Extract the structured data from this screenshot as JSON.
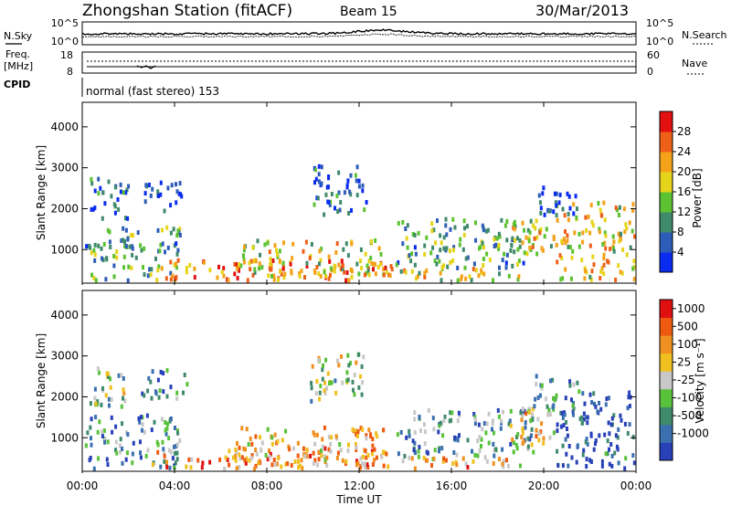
{
  "header": {
    "station": "Zhongshan Station (fitACF)",
    "beam": "Beam 15",
    "date": "30/Mar/2013"
  },
  "noise_panel": {
    "left_label": "N.Sky",
    "left_ticks": [
      "10^5",
      "10^0"
    ],
    "right_label": "N.Search",
    "right_ticks": [
      "10^5",
      "10^0"
    ]
  },
  "freq_panel": {
    "left_label_1": "Freq.",
    "left_label_2": "[MHz]",
    "left_ticks": [
      "18",
      "8"
    ],
    "right_label": "Nave",
    "right_ticks": [
      "60",
      "0"
    ]
  },
  "cpid_panel": {
    "label": "CPID",
    "text": "normal (fast stereo) 153"
  },
  "x_axis": {
    "title": "Time UT",
    "ticks": [
      "00:00",
      "04:00",
      "08:00",
      "12:00",
      "16:00",
      "20:00",
      "00:00"
    ]
  },
  "power_plot": {
    "ylabel": "Slant Range [km]",
    "yticks": [
      "1000",
      "2000",
      "3000",
      "4000"
    ],
    "cbar_label": "Power [dB]",
    "cbar_ticks": [
      "4",
      "8",
      "12",
      "16",
      "20",
      "24",
      "28"
    ],
    "cbar_colors": [
      "#0a2cf0",
      "#2d5db8",
      "#3f8a6a",
      "#5cc232",
      "#e6d41a",
      "#f4a21a",
      "#ee6018",
      "#e21010"
    ]
  },
  "velocity_plot": {
    "ylabel": "Slant Range [km]",
    "yticks": [
      "1000",
      "2000",
      "3000",
      "4000"
    ],
    "cbar_label": "Velocity [m s⁻¹]",
    "cbar_ticks": [
      "1000",
      "500",
      "100",
      "25",
      "-25",
      "-100",
      "-500",
      "-1000"
    ],
    "cbar_colors": [
      "#2840b8",
      "#3a6fb0",
      "#3f8a6a",
      "#58c23a",
      "#c8c8c8",
      "#f0c020",
      "#f09020",
      "#ee5a10",
      "#e01010"
    ]
  },
  "chart_data": [
    {
      "type": "heatmap",
      "title": "Zhongshan Station (fitACF) Beam 15 30/Mar/2013",
      "xlabel": "Time UT",
      "ylabel": "Slant Range [km]",
      "x_ticks": [
        "00:00",
        "04:00",
        "08:00",
        "12:00",
        "16:00",
        "20:00",
        "00:00"
      ],
      "ylim": [
        180,
        4600
      ],
      "colorbar": {
        "label": "Power [dB]",
        "range": [
          0,
          32
        ]
      },
      "blobs": [
        {
          "t0": 0.1,
          "t1": 4.2,
          "r0": 200,
          "r1": 1600,
          "level": 0.35
        },
        {
          "t0": 0.2,
          "t1": 2.0,
          "r0": 1800,
          "r1": 2800,
          "level": 0.15
        },
        {
          "t0": 2.5,
          "t1": 4.5,
          "r0": 2000,
          "r1": 2700,
          "level": 0.12
        },
        {
          "t0": 3.0,
          "t1": 13.5,
          "r0": 180,
          "r1": 800,
          "level": 0.75
        },
        {
          "t0": 6.5,
          "t1": 13.0,
          "r0": 400,
          "r1": 1300,
          "level": 0.55
        },
        {
          "t0": 9.8,
          "t1": 12.3,
          "r0": 1900,
          "r1": 3100,
          "level": 0.18
        },
        {
          "t0": 13.0,
          "t1": 19.0,
          "r0": 250,
          "r1": 600,
          "level": 0.55
        },
        {
          "t0": 13.5,
          "t1": 19.5,
          "r0": 600,
          "r1": 1800,
          "level": 0.35
        },
        {
          "t0": 18.5,
          "t1": 20.5,
          "r0": 800,
          "r1": 1800,
          "level": 0.55
        },
        {
          "t0": 20.5,
          "t1": 24.0,
          "r0": 300,
          "r1": 2200,
          "level": 0.6
        },
        {
          "t0": 19.5,
          "t1": 21.5,
          "r0": 1800,
          "r1": 2600,
          "level": 0.15
        }
      ]
    },
    {
      "type": "heatmap",
      "title": "",
      "xlabel": "Time UT",
      "ylabel": "Slant Range [km]",
      "x_ticks": [
        "00:00",
        "04:00",
        "08:00",
        "12:00",
        "16:00",
        "20:00",
        "00:00"
      ],
      "ylim": [
        180,
        4600
      ],
      "colorbar": {
        "label": "Velocity [m s⁻¹]",
        "range": [
          -1000,
          1000
        ]
      },
      "blobs": [
        {
          "t0": 0.1,
          "t1": 4.2,
          "r0": 200,
          "r1": 1600,
          "level": 0.25
        },
        {
          "t0": 0.2,
          "t1": 2.0,
          "r0": 1800,
          "r1": 2800,
          "level": 0.45
        },
        {
          "t0": 2.5,
          "t1": 4.5,
          "r0": 2000,
          "r1": 2700,
          "level": 0.25
        },
        {
          "t0": 3.0,
          "t1": 13.5,
          "r0": 180,
          "r1": 800,
          "level": 0.72
        },
        {
          "t0": 6.5,
          "t1": 13.0,
          "r0": 400,
          "r1": 1300,
          "level": 0.65
        },
        {
          "t0": 9.8,
          "t1": 12.3,
          "r0": 1900,
          "r1": 3100,
          "level": 0.45
        },
        {
          "t0": 13.0,
          "t1": 19.0,
          "r0": 250,
          "r1": 600,
          "level": 0.65
        },
        {
          "t0": 13.5,
          "t1": 19.5,
          "r0": 600,
          "r1": 1800,
          "level": 0.3
        },
        {
          "t0": 18.5,
          "t1": 20.5,
          "r0": 800,
          "r1": 1800,
          "level": 0.6
        },
        {
          "t0": 20.5,
          "t1": 24.0,
          "r0": 300,
          "r1": 2200,
          "level": 0.1
        },
        {
          "t0": 19.5,
          "t1": 21.5,
          "r0": 1800,
          "r1": 2600,
          "level": 0.3
        }
      ]
    }
  ]
}
